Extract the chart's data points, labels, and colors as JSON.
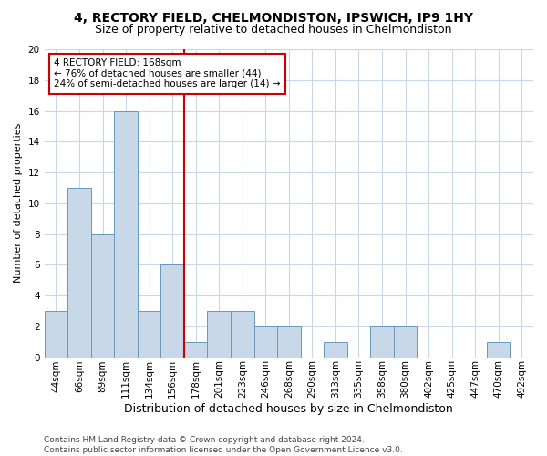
{
  "title": "4, RECTORY FIELD, CHELMONDISTON, IPSWICH, IP9 1HY",
  "subtitle": "Size of property relative to detached houses in Chelmondiston",
  "xlabel": "Distribution of detached houses by size in Chelmondiston",
  "ylabel": "Number of detached properties",
  "footer_line1": "Contains HM Land Registry data © Crown copyright and database right 2024.",
  "footer_line2": "Contains public sector information licensed under the Open Government Licence v3.0.",
  "bin_labels": [
    "44sqm",
    "66sqm",
    "89sqm",
    "111sqm",
    "134sqm",
    "156sqm",
    "178sqm",
    "201sqm",
    "223sqm",
    "246sqm",
    "268sqm",
    "290sqm",
    "313sqm",
    "335sqm",
    "358sqm",
    "380sqm",
    "402sqm",
    "425sqm",
    "447sqm",
    "470sqm",
    "492sqm"
  ],
  "bar_values": [
    3,
    11,
    8,
    16,
    3,
    6,
    1,
    3,
    3,
    2,
    2,
    0,
    1,
    0,
    2,
    2,
    0,
    0,
    0,
    1,
    0
  ],
  "bar_color": "#c8d8e8",
  "bar_edge_color": "#6699bb",
  "vline_x_index": 6,
  "vline_color": "#cc0000",
  "annotation_line1": "4 RECTORY FIELD: 168sqm",
  "annotation_line2": "← 76% of detached houses are smaller (44)",
  "annotation_line3": "24% of semi-detached houses are larger (14) →",
  "annotation_box_color": "#ffffff",
  "annotation_box_edge": "#cc0000",
  "ylim": [
    0,
    20
  ],
  "yticks": [
    0,
    2,
    4,
    6,
    8,
    10,
    12,
    14,
    16,
    18,
    20
  ],
  "grid_color": "#c8d8e8",
  "background_color": "#ffffff",
  "plot_background": "#ffffff",
  "title_fontsize": 10,
  "subtitle_fontsize": 9,
  "ylabel_fontsize": 8,
  "xlabel_fontsize": 9,
  "tick_fontsize": 7.5,
  "footer_fontsize": 6.5
}
